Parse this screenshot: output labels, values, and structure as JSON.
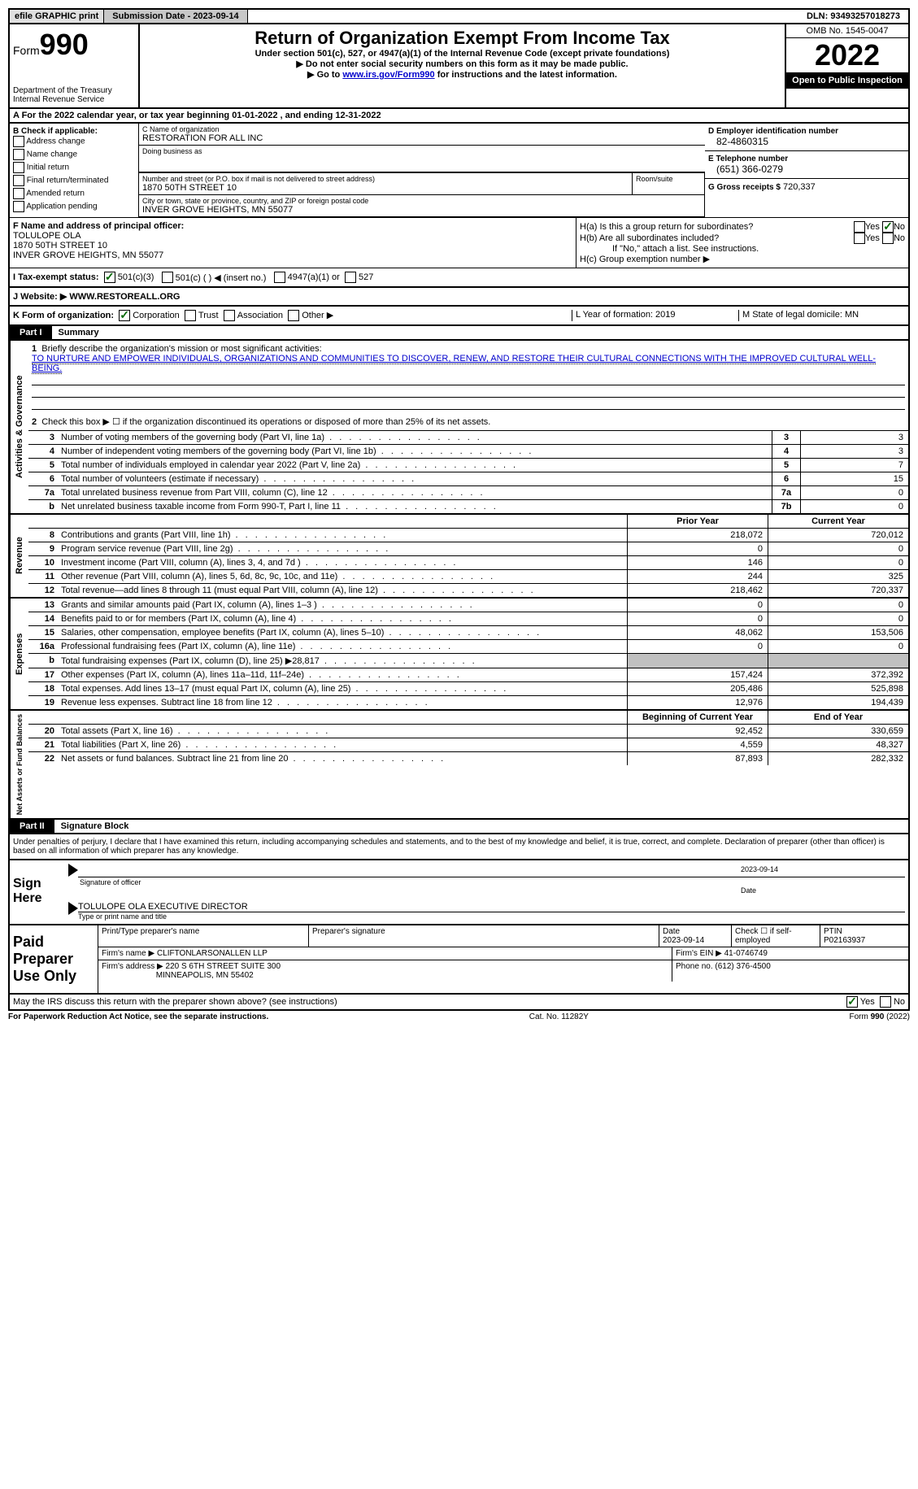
{
  "topbar": {
    "efile": "efile GRAPHIC print",
    "submission": "Submission Date - 2023-09-14",
    "dln": "DLN: 93493257018273"
  },
  "header": {
    "form_label": "Form",
    "form_num": "990",
    "dept": "Department of the Treasury Internal Revenue Service",
    "title": "Return of Organization Exempt From Income Tax",
    "subtitle": "Under section 501(c), 527, or 4947(a)(1) of the Internal Revenue Code (except private foundations)",
    "note1": "▶ Do not enter social security numbers on this form as it may be made public.",
    "note2_prefix": "▶ Go to ",
    "note2_link": "www.irs.gov/Form990",
    "note2_suffix": " for instructions and the latest information.",
    "omb": "OMB No. 1545-0047",
    "year": "2022",
    "open": "Open to Public Inspection"
  },
  "row_a": "A For the 2022 calendar year, or tax year beginning 01-01-2022    , and ending 12-31-2022",
  "box_b": {
    "label": "B Check if applicable:",
    "items": [
      "Address change",
      "Name change",
      "Initial return",
      "Final return/terminated",
      "Amended return",
      "Application pending"
    ]
  },
  "box_c": {
    "name_label": "C Name of organization",
    "name": "RESTORATION FOR ALL INC",
    "dba_label": "Doing business as",
    "addr_label": "Number and street (or P.O. box if mail is not delivered to street address)",
    "addr": "1870 50TH STREET 10",
    "room_label": "Room/suite",
    "city_label": "City or town, state or province, country, and ZIP or foreign postal code",
    "city": "INVER GROVE HEIGHTS, MN  55077"
  },
  "box_d": {
    "ein_label": "D Employer identification number",
    "ein": "82-4860315",
    "phone_label": "E Telephone number",
    "phone": "(651) 366-0279",
    "gross_label": "G Gross receipts $",
    "gross": "720,337"
  },
  "box_f": {
    "label": "F  Name and address of principal officer:",
    "name": "TOLULOPE OLA",
    "addr1": "1870 50TH STREET 10",
    "addr2": "INVER GROVE HEIGHTS, MN  55077"
  },
  "box_h": {
    "ha": "H(a)  Is this a group return for subordinates?",
    "hb": "H(b)  Are all subordinates included?",
    "hb_note": "If \"No,\" attach a list. See instructions.",
    "hc": "H(c)  Group exemption number ▶",
    "yes": "Yes",
    "no": "No"
  },
  "row_i": {
    "label": "I   Tax-exempt status:",
    "o1": "501(c)(3)",
    "o2": "501(c) (  ) ◀ (insert no.)",
    "o3": "4947(a)(1) or",
    "o4": "527"
  },
  "row_j": {
    "label": "J   Website: ▶",
    "value": "  WWW.RESTOREALL.ORG"
  },
  "row_k": {
    "label": "K Form of organization:",
    "o1": "Corporation",
    "o2": "Trust",
    "o3": "Association",
    "o4": "Other ▶",
    "l": "L Year of formation: 2019",
    "m": "M State of legal domicile: MN"
  },
  "parts": {
    "p1": "Part I",
    "p1_title": "Summary",
    "p2": "Part II",
    "p2_title": "Signature Block"
  },
  "summary": {
    "q1": "Briefly describe the organization's mission or most significant activities:",
    "mission": "TO NURTURE AND EMPOWER INDIVIDUALS, ORGANIZATIONS AND COMMUNITIES TO DISCOVER, RENEW, AND RESTORE THEIR CULTURAL CONNECTIONS WITH THE IMPROVED CULTURAL WELL-BEING.",
    "q2": "Check this box ▶ ☐ if the organization discontinued its operations or disposed of more than 25% of its net assets.",
    "rows_single": [
      {
        "n": "3",
        "label": "Number of voting members of the governing body (Part VI, line 1a)",
        "box": "3",
        "val": "3"
      },
      {
        "n": "4",
        "label": "Number of independent voting members of the governing body (Part VI, line 1b)",
        "box": "4",
        "val": "3"
      },
      {
        "n": "5",
        "label": "Total number of individuals employed in calendar year 2022 (Part V, line 2a)",
        "box": "5",
        "val": "7"
      },
      {
        "n": "6",
        "label": "Total number of volunteers (estimate if necessary)",
        "box": "6",
        "val": "15"
      },
      {
        "n": "7a",
        "label": "Total unrelated business revenue from Part VIII, column (C), line 12",
        "box": "7a",
        "val": "0"
      },
      {
        "n": "b",
        "label": "Net unrelated business taxable income from Form 990-T, Part I, line 11",
        "box": "7b",
        "val": "0"
      }
    ],
    "header_prior": "Prior Year",
    "header_current": "Current Year",
    "revenue": [
      {
        "n": "8",
        "label": "Contributions and grants (Part VIII, line 1h)",
        "v1": "218,072",
        "v2": "720,012"
      },
      {
        "n": "9",
        "label": "Program service revenue (Part VIII, line 2g)",
        "v1": "0",
        "v2": "0"
      },
      {
        "n": "10",
        "label": "Investment income (Part VIII, column (A), lines 3, 4, and 7d )",
        "v1": "146",
        "v2": "0"
      },
      {
        "n": "11",
        "label": "Other revenue (Part VIII, column (A), lines 5, 6d, 8c, 9c, 10c, and 11e)",
        "v1": "244",
        "v2": "325"
      },
      {
        "n": "12",
        "label": "Total revenue—add lines 8 through 11 (must equal Part VIII, column (A), line 12)",
        "v1": "218,462",
        "v2": "720,337"
      }
    ],
    "expenses": [
      {
        "n": "13",
        "label": "Grants and similar amounts paid (Part IX, column (A), lines 1–3 )",
        "v1": "0",
        "v2": "0"
      },
      {
        "n": "14",
        "label": "Benefits paid to or for members (Part IX, column (A), line 4)",
        "v1": "0",
        "v2": "0"
      },
      {
        "n": "15",
        "label": "Salaries, other compensation, employee benefits (Part IX, column (A), lines 5–10)",
        "v1": "48,062",
        "v2": "153,506"
      },
      {
        "n": "16a",
        "label": "Professional fundraising fees (Part IX, column (A), line 11e)",
        "v1": "0",
        "v2": "0"
      },
      {
        "n": "b",
        "label": "Total fundraising expenses (Part IX, column (D), line 25) ▶28,817",
        "v1": "",
        "v2": "",
        "shaded": true
      },
      {
        "n": "17",
        "label": "Other expenses (Part IX, column (A), lines 11a–11d, 11f–24e)",
        "v1": "157,424",
        "v2": "372,392"
      },
      {
        "n": "18",
        "label": "Total expenses. Add lines 13–17 (must equal Part IX, column (A), line 25)",
        "v1": "205,486",
        "v2": "525,898"
      },
      {
        "n": "19",
        "label": "Revenue less expenses. Subtract line 18 from line 12",
        "v1": "12,976",
        "v2": "194,439"
      }
    ],
    "header_begin": "Beginning of Current Year",
    "header_end": "End of Year",
    "net": [
      {
        "n": "20",
        "label": "Total assets (Part X, line 16)",
        "v1": "92,452",
        "v2": "330,659"
      },
      {
        "n": "21",
        "label": "Total liabilities (Part X, line 26)",
        "v1": "4,559",
        "v2": "48,327"
      },
      {
        "n": "22",
        "label": "Net assets or fund balances. Subtract line 21 from line 20",
        "v1": "87,893",
        "v2": "282,332"
      }
    ],
    "labels": {
      "activities": "Activities & Governance",
      "revenue": "Revenue",
      "expenses": "Expenses",
      "net": "Net Assets or Fund Balances"
    }
  },
  "sig": {
    "declaration": "Under penalties of perjury, I declare that I have examined this return, including accompanying schedules and statements, and to the best of my knowledge and belief, it is true, correct, and complete. Declaration of preparer (other than officer) is based on all information of which preparer has any knowledge.",
    "sign_here": "Sign Here",
    "sig_date": "2023-09-14",
    "sig_officer": "Signature of officer",
    "date_label": "Date",
    "officer_name": "TOLULOPE OLA  EXECUTIVE DIRECTOR",
    "officer_label": "Type or print name and title"
  },
  "prep": {
    "label": "Paid Preparer Use Only",
    "print_name_label": "Print/Type preparer's name",
    "sig_label": "Preparer's signature",
    "date_label": "Date",
    "date": "2023-09-14",
    "check_label": "Check ☐ if self-employed",
    "ptin_label": "PTIN",
    "ptin": "P02163937",
    "firm_name_label": "Firm's name    ▶",
    "firm_name": "CLIFTONLARSONALLEN LLP",
    "firm_ein_label": "Firm's EIN ▶",
    "firm_ein": "41-0746749",
    "firm_addr_label": "Firm's address ▶",
    "firm_addr1": "220 S 6TH STREET SUITE 300",
    "firm_addr2": "MINNEAPOLIS, MN  55402",
    "phone_label": "Phone no.",
    "phone": "(612) 376-4500"
  },
  "footer": {
    "discuss": "May the IRS discuss this return with the preparer shown above? (see instructions)",
    "yes": "Yes",
    "no": "No",
    "paperwork": "For Paperwork Reduction Act Notice, see the separate instructions.",
    "cat": "Cat. No. 11282Y",
    "form": "Form 990 (2022)"
  }
}
